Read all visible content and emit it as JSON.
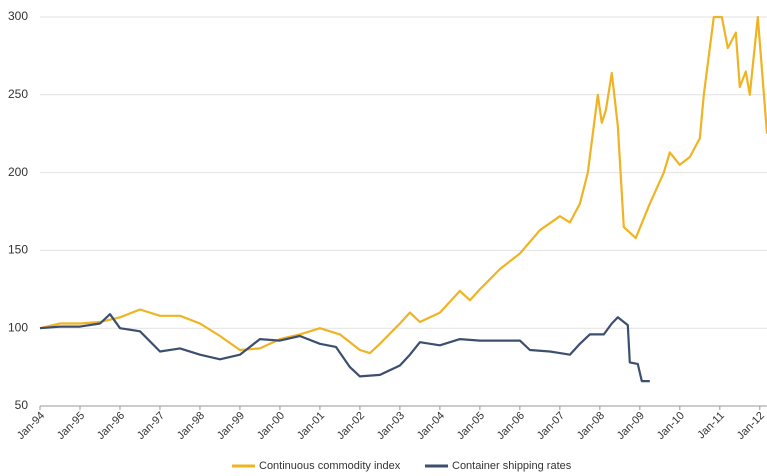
{
  "chart_data": {
    "type": "line",
    "series": [
      {
        "name": "Continuous commodity index",
        "color": "#f0b323",
        "x": [
          1994.0,
          1994.5,
          1995.0,
          1995.5,
          1996.0,
          1996.5,
          1997.0,
          1997.5,
          1998.0,
          1998.5,
          1999.0,
          1999.5,
          2000.0,
          2000.5,
          2001.0,
          2001.5,
          2002.0,
          2002.25,
          2002.5,
          2003.0,
          2003.25,
          2003.5,
          2004.0,
          2004.5,
          2004.75,
          2005.0,
          2005.5,
          2006.0,
          2006.5,
          2007.0,
          2007.25,
          2007.5,
          2007.7,
          2007.95,
          2008.05,
          2008.15,
          2008.3,
          2008.45,
          2008.6,
          2008.9,
          2009.25,
          2009.6,
          2009.75,
          2010.0,
          2010.25,
          2010.5,
          2010.6,
          2010.75,
          2010.85,
          2011.05,
          2011.2,
          2011.4,
          2011.5,
          2011.65,
          2011.75,
          2011.95,
          2012.18
        ],
        "values": [
          100,
          103,
          103,
          104,
          107,
          112,
          108,
          108,
          103,
          95,
          86,
          87,
          93,
          96,
          100,
          96,
          86,
          84,
          90,
          103,
          110,
          104,
          110,
          124,
          118,
          125,
          138,
          148,
          163,
          172,
          168,
          180,
          200,
          250,
          232,
          240,
          264,
          230,
          165,
          158,
          180,
          200,
          213,
          205,
          210,
          222,
          250,
          280,
          300,
          300,
          280,
          290,
          255,
          265,
          250,
          300,
          225
        ]
      },
      {
        "name": "Container shipping rates",
        "color": "#3d4f6e",
        "x": [
          1994.0,
          1994.5,
          1995.0,
          1995.5,
          1995.75,
          1996.0,
          1996.5,
          1997.0,
          1997.5,
          1998.0,
          1998.5,
          1999.0,
          1999.5,
          2000.0,
          2000.5,
          2001.0,
          2001.4,
          2001.75,
          2002.0,
          2002.5,
          2003.0,
          2003.25,
          2003.5,
          2004.0,
          2004.5,
          2005.0,
          2005.5,
          2006.0,
          2006.25,
          2006.75,
          2007.0,
          2007.25,
          2007.5,
          2007.75,
          2008.1,
          2008.3,
          2008.45,
          2008.7,
          2008.75,
          2008.95,
          2009.05,
          2009.25
        ],
        "values": [
          100,
          101,
          101,
          103,
          109,
          100,
          98,
          85,
          87,
          83,
          80,
          83,
          93,
          92,
          95,
          90,
          88,
          75,
          69,
          70,
          76,
          83,
          91,
          89,
          93,
          92,
          92,
          92,
          86,
          85,
          84,
          83,
          90,
          96,
          96,
          103,
          107,
          102,
          78,
          77,
          66,
          66
        ]
      }
    ],
    "xlim": [
      1994,
      2012.18
    ],
    "xticks": [
      {
        "value": 1994,
        "label": "Jan-94"
      },
      {
        "value": 1995,
        "label": "Jan-95"
      },
      {
        "value": 1996,
        "label": "Jan-96"
      },
      {
        "value": 1997,
        "label": "Jan-97"
      },
      {
        "value": 1998,
        "label": "Jan-98"
      },
      {
        "value": 1999,
        "label": "Jan-99"
      },
      {
        "value": 2000,
        "label": "Jan-00"
      },
      {
        "value": 2001,
        "label": "Jan-01"
      },
      {
        "value": 2002,
        "label": "Jan-02"
      },
      {
        "value": 2003,
        "label": "Jan-03"
      },
      {
        "value": 2004,
        "label": "Jan-04"
      },
      {
        "value": 2005,
        "label": "Jan-05"
      },
      {
        "value": 2006,
        "label": "Jan-06"
      },
      {
        "value": 2007,
        "label": "Jan-07"
      },
      {
        "value": 2008,
        "label": "Jan-08"
      },
      {
        "value": 2009,
        "label": "Jan-09"
      },
      {
        "value": 2010,
        "label": "Jan-10"
      },
      {
        "value": 2011,
        "label": "Jan-11"
      },
      {
        "value": 2012,
        "label": "Jan-12"
      }
    ],
    "ylim": [
      50,
      300
    ],
    "yticks": [
      50,
      100,
      150,
      200,
      250,
      300
    ],
    "grid": true,
    "legend": "bottom"
  }
}
